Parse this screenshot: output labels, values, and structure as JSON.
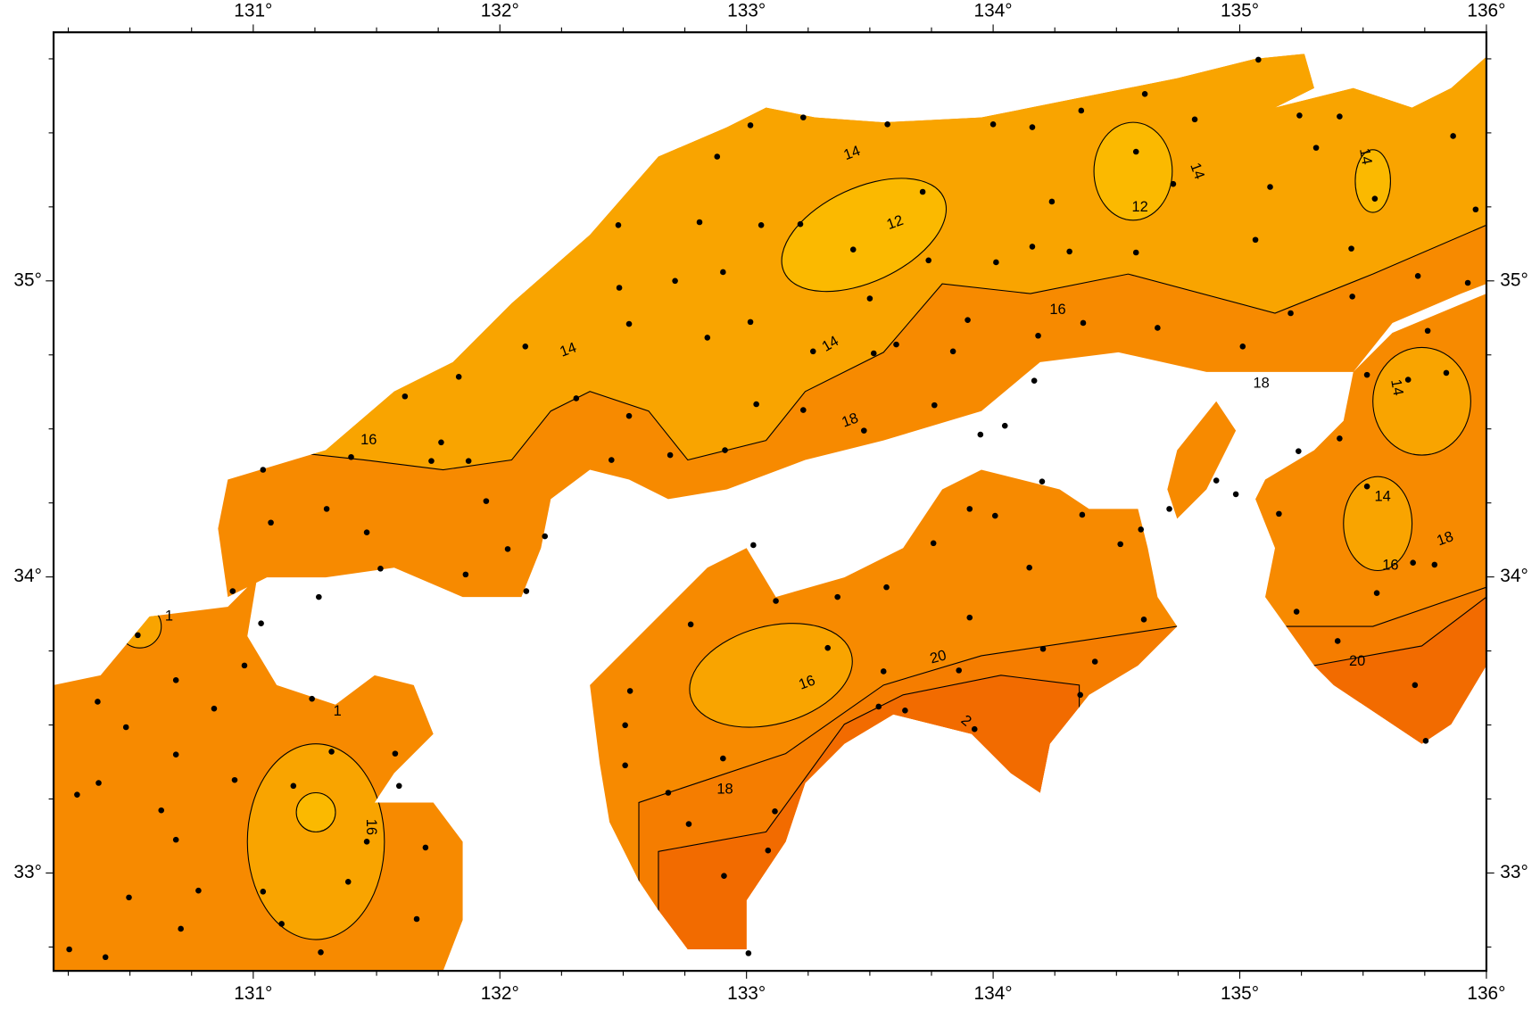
{
  "map": {
    "longitude_labels_top": [
      "131°",
      "132°",
      "133°",
      "134°",
      "135°",
      "136°"
    ],
    "longitude_labels_bottom": [
      "131°",
      "132°",
      "133°",
      "134°",
      "135°",
      "136°"
    ],
    "latitude_labels_left": [
      "35°",
      "34°",
      "33°"
    ],
    "latitude_labels_right": [
      "35°",
      "34°",
      "33°"
    ],
    "contour_labels": [
      "14",
      "12",
      "14",
      "16",
      "14",
      "18",
      "16",
      "12",
      "14",
      "18",
      "14",
      "14",
      "14",
      "18",
      "16",
      "20",
      "16",
      "20",
      "2",
      "18",
      "16",
      "1",
      "1"
    ]
  }
}
